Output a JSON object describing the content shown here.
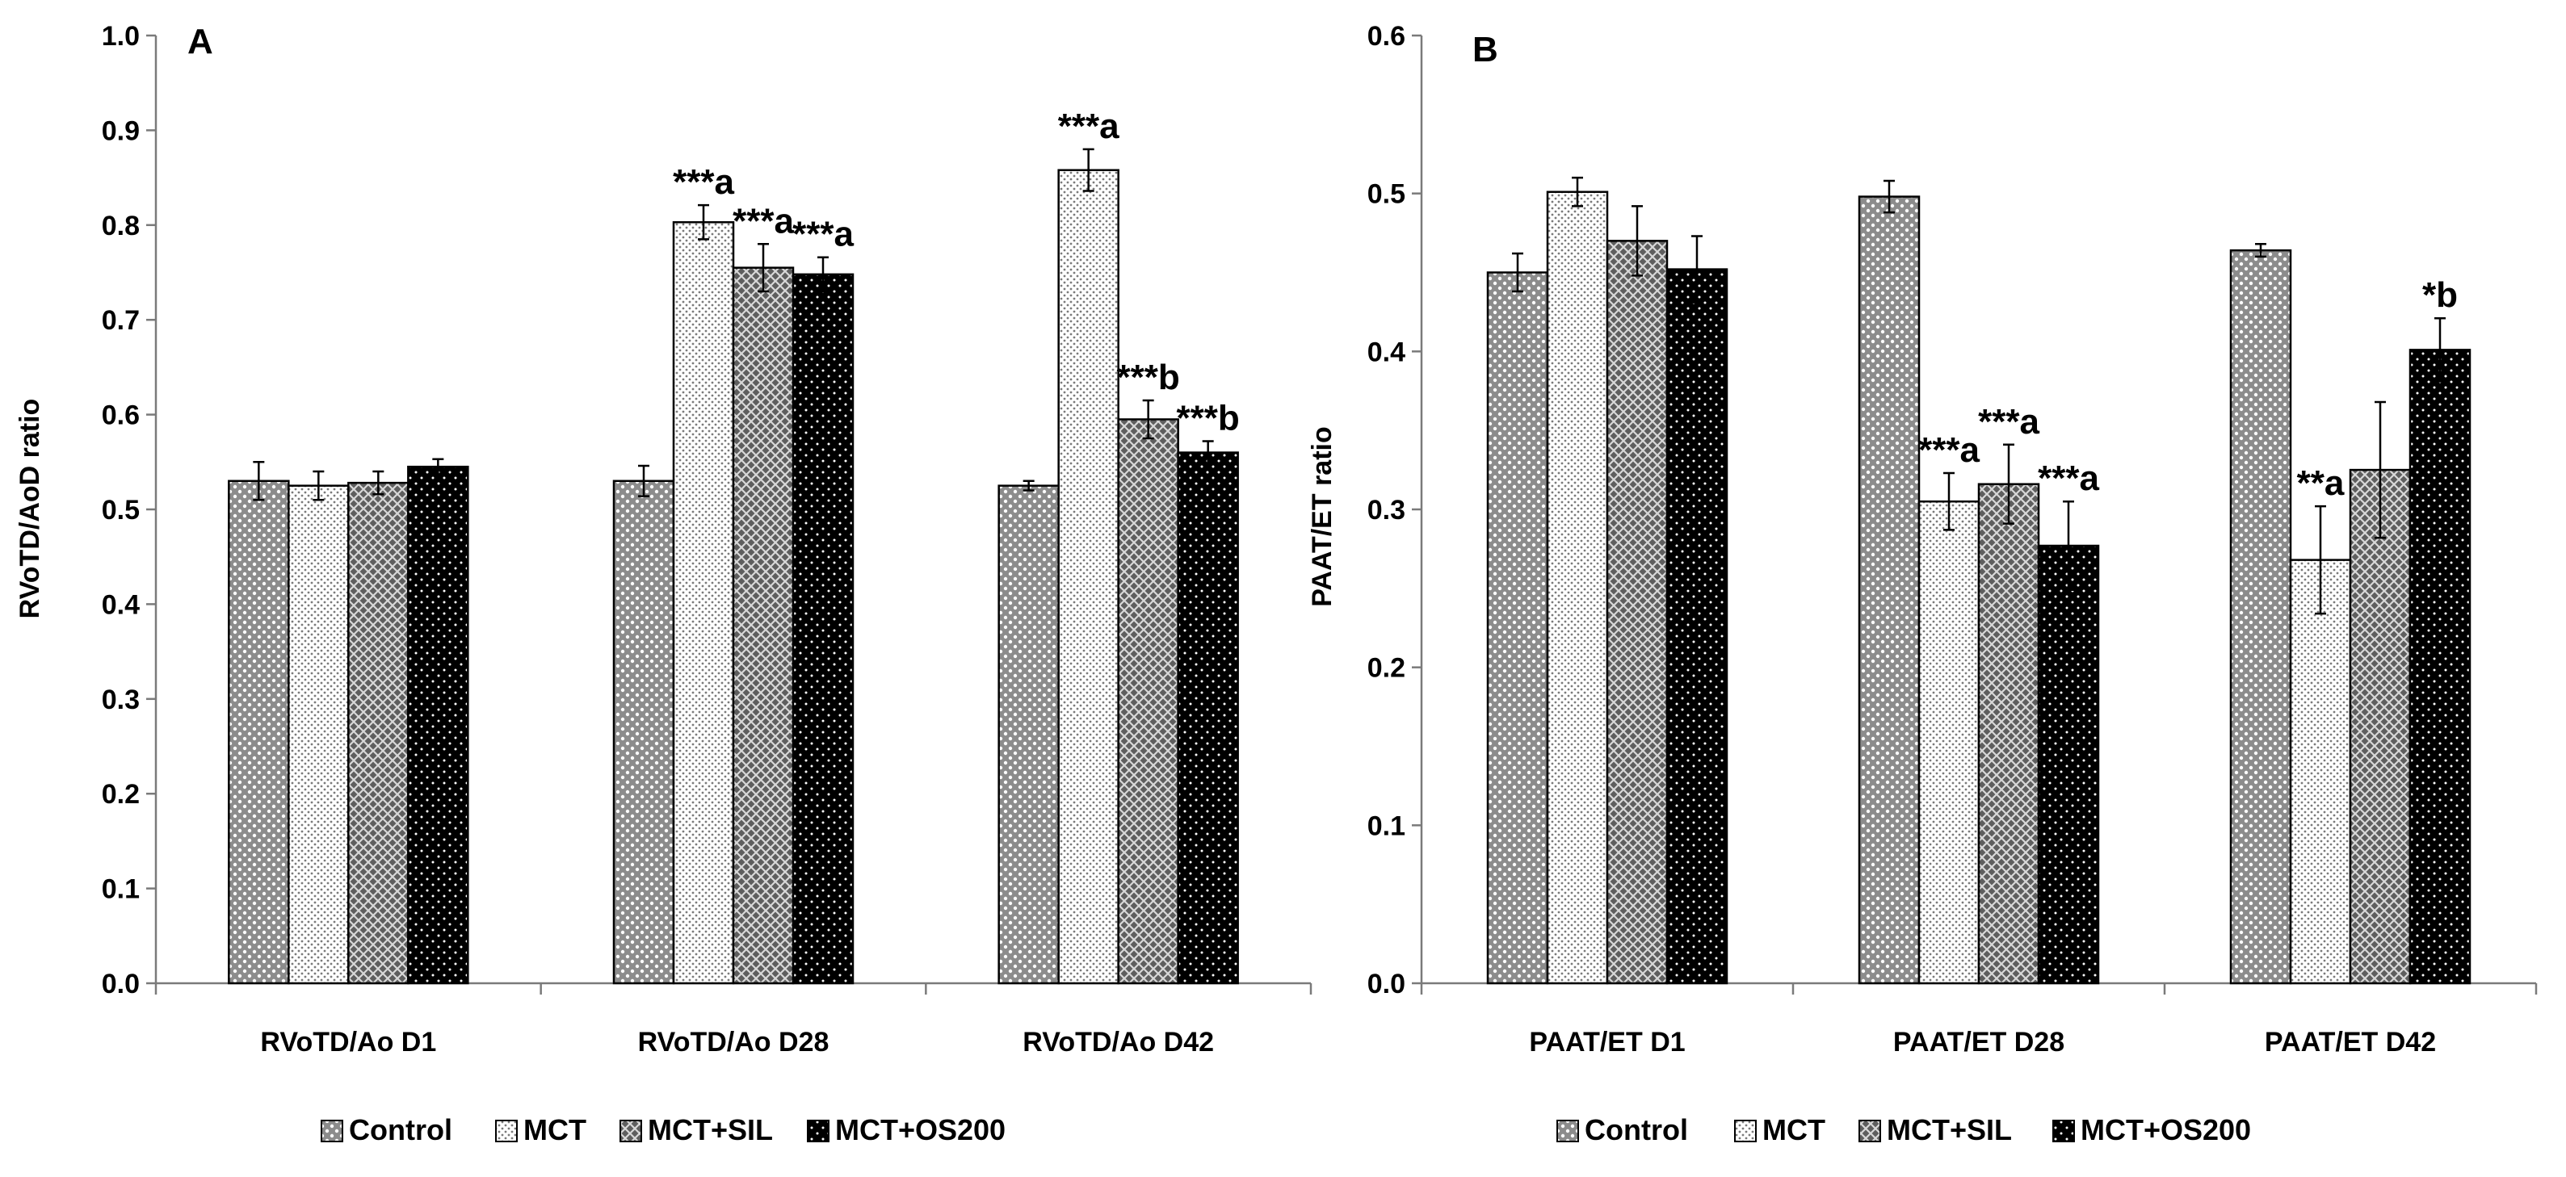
{
  "chart_data": [
    {
      "type": "bar",
      "panel_label": "A",
      "ylabel": "RVoTD/AoD ratio",
      "ylim": [
        0,
        1.0
      ],
      "yticks": [
        "0.0",
        "0.1",
        "0.2",
        "0.3",
        "0.4",
        "0.5",
        "0.6",
        "0.7",
        "0.8",
        "0.9",
        "1.0"
      ],
      "categories": [
        "RVoTD/Ao D1",
        "RVoTD/Ao D28",
        "RVoTD/Ao D42"
      ],
      "series": [
        {
          "name": "Control",
          "values": [
            0.53,
            0.53,
            0.525
          ],
          "errors": [
            0.02,
            0.016,
            0.005
          ]
        },
        {
          "name": "MCT",
          "values": [
            0.525,
            0.803,
            0.858
          ],
          "errors": [
            0.015,
            0.018,
            0.022
          ]
        },
        {
          "name": "MCT+SIL",
          "values": [
            0.528,
            0.755,
            0.595
          ],
          "errors": [
            0.012,
            0.025,
            0.02
          ]
        },
        {
          "name": "MCT+OS200",
          "values": [
            0.545,
            0.748,
            0.56
          ],
          "errors": [
            0.008,
            0.018,
            0.012
          ]
        }
      ],
      "annotations": [
        {
          "category": 1,
          "series": 1,
          "text": "***a"
        },
        {
          "category": 1,
          "series": 2,
          "text": "***a"
        },
        {
          "category": 1,
          "series": 3,
          "text": "***a"
        },
        {
          "category": 2,
          "series": 1,
          "text": "***a"
        },
        {
          "category": 2,
          "series": 2,
          "text": "***b"
        },
        {
          "category": 2,
          "series": 3,
          "text": "***b"
        }
      ]
    },
    {
      "type": "bar",
      "panel_label": "B",
      "ylabel": "PAAT/ET ratio",
      "ylim": [
        0,
        0.6
      ],
      "yticks": [
        "0.0",
        "0.1",
        "0.2",
        "0.3",
        "0.4",
        "0.5",
        "0.6"
      ],
      "categories": [
        "PAAT/ET D1",
        "PAAT/ET D28",
        "PAAT/ET D42"
      ],
      "series": [
        {
          "name": "Control",
          "values": [
            0.45,
            0.498,
            0.464
          ],
          "errors": [
            0.012,
            0.01,
            0.004
          ]
        },
        {
          "name": "MCT",
          "values": [
            0.501,
            0.305,
            0.268
          ],
          "errors": [
            0.009,
            0.018,
            0.034
          ]
        },
        {
          "name": "MCT+SIL",
          "values": [
            0.47,
            0.316,
            0.325
          ],
          "errors": [
            0.022,
            0.025,
            0.043
          ]
        },
        {
          "name": "MCT+OS200",
          "values": [
            0.452,
            0.277,
            0.401
          ],
          "errors": [
            0.021,
            0.028,
            0.02
          ]
        }
      ],
      "annotations": [
        {
          "category": 1,
          "series": 1,
          "text": "***a"
        },
        {
          "category": 1,
          "series": 2,
          "text": "***a"
        },
        {
          "category": 1,
          "series": 3,
          "text": "***a"
        },
        {
          "category": 2,
          "series": 1,
          "text": "**a"
        },
        {
          "category": 2,
          "series": 3,
          "text": "*b"
        }
      ]
    }
  ],
  "legend": [
    "Control",
    "MCT",
    "MCT+SIL",
    "MCT+OS200"
  ]
}
